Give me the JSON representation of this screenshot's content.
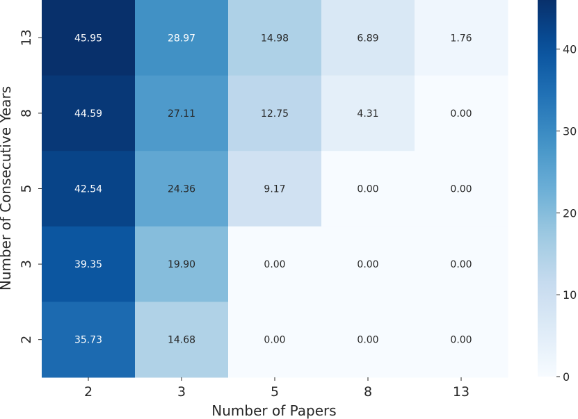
{
  "chart_data": {
    "type": "heatmap",
    "title": "",
    "xlabel": "Number of Papers",
    "ylabel": "Number of Consecutive Years",
    "x_categories": [
      "2",
      "3",
      "5",
      "8",
      "13"
    ],
    "y_categories": [
      "13",
      "8",
      "5",
      "3",
      "2"
    ],
    "values": [
      [
        45.95,
        28.97,
        14.98,
        6.89,
        1.76
      ],
      [
        44.59,
        27.11,
        12.75,
        4.31,
        0.0
      ],
      [
        42.54,
        24.36,
        9.17,
        0.0,
        0.0
      ],
      [
        39.35,
        19.9,
        0.0,
        0.0,
        0.0
      ],
      [
        35.73,
        14.68,
        0.0,
        0.0,
        0.0
      ]
    ],
    "cell_labels": [
      [
        "45.95",
        "28.97",
        "14.98",
        "6.89",
        "1.76"
      ],
      [
        "44.59",
        "27.11",
        "12.75",
        "4.31",
        "0.00"
      ],
      [
        "42.54",
        "24.36",
        "9.17",
        "0.00",
        "0.00"
      ],
      [
        "39.35",
        "19.90",
        "0.00",
        "0.00",
        "0.00"
      ],
      [
        "35.73",
        "14.68",
        "0.00",
        "0.00",
        "0.00"
      ]
    ],
    "colormap": "Blues",
    "colorbar": {
      "vmin": 0,
      "vmax": 46,
      "ticks": [
        0,
        10,
        20,
        30,
        40
      ],
      "tick_labels": [
        "0",
        "10",
        "20",
        "30",
        "40"
      ]
    },
    "grid": false
  }
}
